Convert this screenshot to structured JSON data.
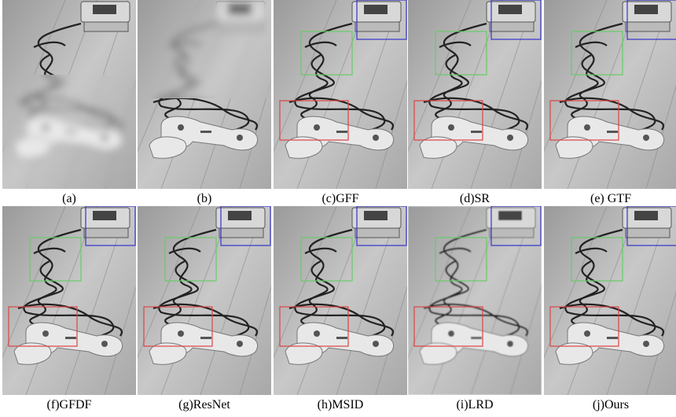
{
  "captions": [
    "(a)",
    "(b)",
    "(c)GFF",
    "(d)SR",
    "(e) GTF",
    "(f)GFDF",
    "(g)ResNet",
    "(h)MSID",
    "(i)LRD",
    "(j)Ours"
  ]
}
